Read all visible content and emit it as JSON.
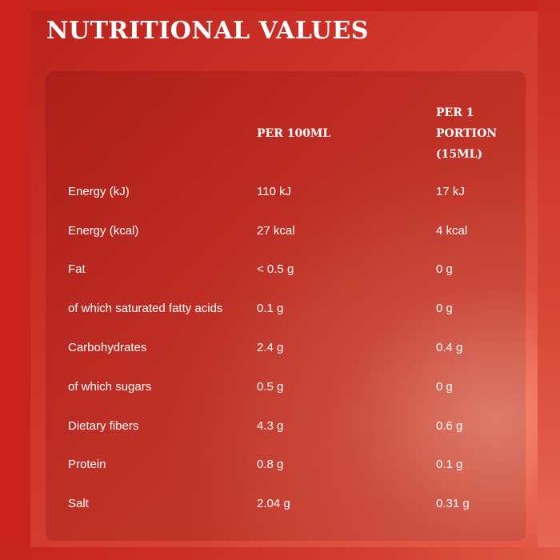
{
  "title": "NUTRITIONAL VALUES",
  "table": {
    "headers": [
      "",
      "PER 100ML",
      "PER 1 PORTION (15ML)"
    ],
    "rows": [
      {
        "label": "Energy (kJ)",
        "per100": "110 kJ",
        "portion": "17 kJ"
      },
      {
        "label": "Energy (kcal)",
        "per100": "27 kcal",
        "portion": "4 kcal"
      },
      {
        "label": "Fat",
        "per100": "< 0.5 g",
        "portion": "0 g"
      },
      {
        "label": "of which saturated fatty acids",
        "per100": "0.1 g",
        "portion": "0 g"
      },
      {
        "label": "Carbohydrates",
        "per100": "2.4 g",
        "portion": "0.4 g"
      },
      {
        "label": "of which sugars",
        "per100": "0.5 g",
        "portion": "0 g"
      },
      {
        "label": "Dietary fibers",
        "per100": "4.3 g",
        "portion": "0.6 g"
      },
      {
        "label": "Protein",
        "per100": "0.8 g",
        "portion": "0.1 g"
      },
      {
        "label": "Salt",
        "per100": "2.04 g",
        "portion": "0.31 g"
      }
    ]
  },
  "colors": {
    "background": "#cf2a20",
    "text": "#ffffff",
    "highlight": "#f08a73"
  }
}
